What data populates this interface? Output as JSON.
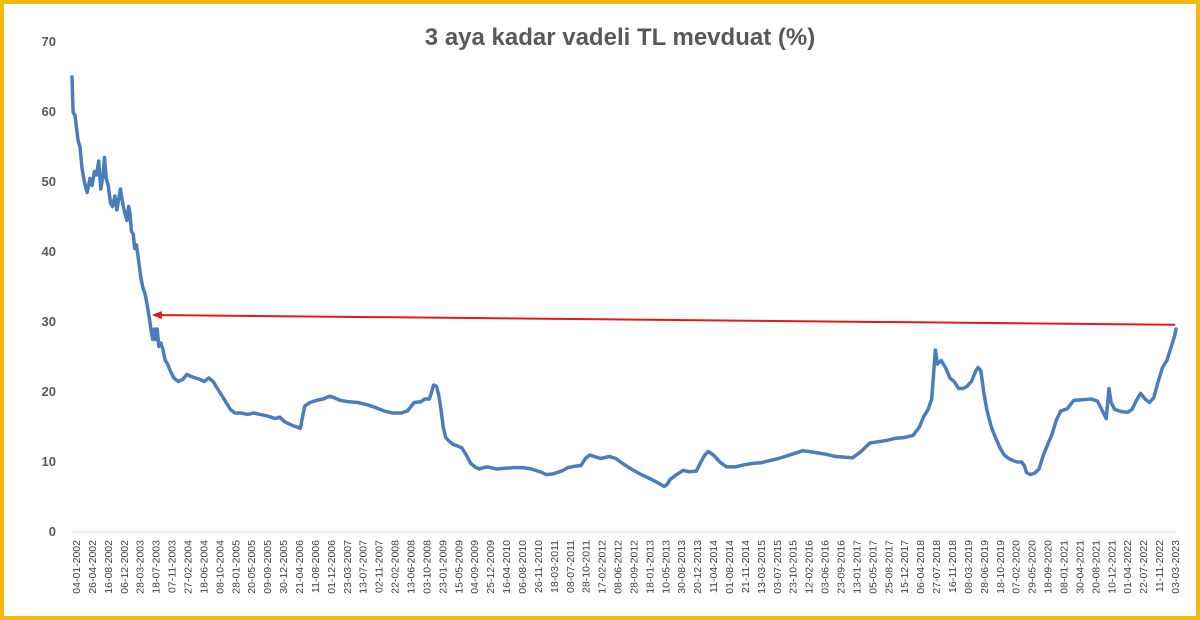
{
  "chart_data": {
    "type": "line",
    "title": "3 aya kadar vadeli TL mevduat (%)",
    "xlabel": "",
    "ylabel": "",
    "ylim": [
      0,
      70
    ],
    "yticks": [
      0,
      10,
      20,
      30,
      40,
      50,
      60,
      70
    ],
    "grid": false,
    "legend": "none",
    "x_tick_labels": [
      "04-01-2002",
      "26-04-2002",
      "16-08-2002",
      "06-12-2002",
      "28-03-2003",
      "18-07-2003",
      "07-11-2003",
      "27-02-2004",
      "18-06-2004",
      "08-10-2004",
      "28-01-2005",
      "20-05-2005",
      "09-09-2005",
      "30-12-2005",
      "21-04-2006",
      "11-08-2006",
      "01-12-2006",
      "23-03-2007",
      "13-07-2007",
      "02-11-2007",
      "22-02-2008",
      "13-06-2008",
      "03-10-2008",
      "23-01-2009",
      "15-05-2009",
      "04-09-2009",
      "25-12-2009",
      "16-04-2010",
      "06-08-2010",
      "26-11-2010",
      "18-03-2011",
      "08-07-2011",
      "28-10-2011",
      "17-02-2012",
      "08-06-2012",
      "28-09-2012",
      "18-01-2013",
      "10-05-2013",
      "30-08-2013",
      "20-12-2013",
      "11-04-2014",
      "01-08-2014",
      "21-11-2014",
      "13-03-2015",
      "03-07-2015",
      "23-10-2015",
      "12-02-2016",
      "03-06-2016",
      "23-09-2016",
      "13-01-2017",
      "05-05-2017",
      "25-08-2017",
      "15-12-2017",
      "06-04-2018",
      "27-07-2018",
      "16-11-2018",
      "08-03-2019",
      "28-06-2019",
      "18-10-2019",
      "07-02-2020",
      "29-05-2020",
      "18-09-2020",
      "08-01-2021",
      "30-04-2021",
      "20-08-2021",
      "10-12-2021",
      "01-04-2022",
      "22-07-2022",
      "11-11-2022",
      "03-03-2023"
    ],
    "series": [
      {
        "color": "#4a7ebb",
        "points": [
          [
            "2002-01-04",
            65
          ],
          [
            "2002-01-12",
            60
          ],
          [
            "2002-01-25",
            59.5
          ],
          [
            "2002-02-15",
            56
          ],
          [
            "2002-03-01",
            55
          ],
          [
            "2002-03-15",
            52
          ],
          [
            "2002-04-01",
            50
          ],
          [
            "2002-04-20",
            48.5
          ],
          [
            "2002-05-10",
            50.5
          ],
          [
            "2002-05-25",
            49.5
          ],
          [
            "2002-06-10",
            51.5
          ],
          [
            "2002-06-25",
            51
          ],
          [
            "2002-07-10",
            53
          ],
          [
            "2002-07-25",
            49
          ],
          [
            "2002-08-10",
            51
          ],
          [
            "2002-08-20",
            53.5
          ],
          [
            "2002-09-01",
            50.5
          ],
          [
            "2002-09-15",
            49.5
          ],
          [
            "2002-10-01",
            47
          ],
          [
            "2002-10-15",
            46.5
          ],
          [
            "2002-11-01",
            48
          ],
          [
            "2002-11-15",
            46
          ],
          [
            "2002-12-01",
            48
          ],
          [
            "2002-12-10",
            49
          ],
          [
            "2002-12-25",
            47
          ],
          [
            "2003-01-10",
            45.5
          ],
          [
            "2003-01-25",
            44.5
          ],
          [
            "2003-02-05",
            46.5
          ],
          [
            "2003-02-15",
            45.5
          ],
          [
            "2003-02-25",
            43
          ],
          [
            "2003-03-10",
            42.5
          ],
          [
            "2003-03-20",
            40.5
          ],
          [
            "2003-04-01",
            41
          ],
          [
            "2003-04-15",
            39
          ],
          [
            "2003-05-01",
            36.5
          ],
          [
            "2003-05-15",
            35
          ],
          [
            "2003-06-01",
            34
          ],
          [
            "2003-06-15",
            32.5
          ],
          [
            "2003-07-01",
            30.5
          ],
          [
            "2003-07-15",
            28.5
          ],
          [
            "2003-07-25",
            27.5
          ],
          [
            "2003-08-05",
            29
          ],
          [
            "2003-08-15",
            27.5
          ],
          [
            "2003-08-25",
            29
          ],
          [
            "2003-09-05",
            26.5
          ],
          [
            "2003-09-20",
            27
          ],
          [
            "2003-10-05",
            26
          ],
          [
            "2003-10-20",
            24.5
          ],
          [
            "2003-11-05",
            24
          ],
          [
            "2003-11-25",
            23
          ],
          [
            "2003-12-20",
            22
          ],
          [
            "2004-01-20",
            21.5
          ],
          [
            "2004-02-20",
            21.8
          ],
          [
            "2004-03-20",
            22.5
          ],
          [
            "2004-04-20",
            22.2
          ],
          [
            "2004-05-20",
            22
          ],
          [
            "2004-06-20",
            21.8
          ],
          [
            "2004-07-20",
            21.5
          ],
          [
            "2004-08-20",
            22
          ],
          [
            "2004-09-20",
            21.5
          ],
          [
            "2004-10-20",
            20.5
          ],
          [
            "2004-11-20",
            19.5
          ],
          [
            "2004-12-20",
            18.5
          ],
          [
            "2005-01-20",
            17.5
          ],
          [
            "2005-02-20",
            17
          ],
          [
            "2005-04-01",
            17
          ],
          [
            "2005-05-20",
            16.8
          ],
          [
            "2005-07-01",
            17
          ],
          [
            "2005-08-15",
            16.8
          ],
          [
            "2005-10-01",
            16.6
          ],
          [
            "2005-11-01",
            16.4
          ],
          [
            "2005-12-01",
            16.2
          ],
          [
            "2006-01-01",
            16.4
          ],
          [
            "2006-02-01",
            15.8
          ],
          [
            "2006-03-01",
            15.5
          ],
          [
            "2006-04-01",
            15.2
          ],
          [
            "2006-05-01",
            15
          ],
          [
            "2006-05-25",
            14.8
          ],
          [
            "2006-06-10",
            16.5
          ],
          [
            "2006-06-25",
            18
          ],
          [
            "2006-08-01",
            18.5
          ],
          [
            "2006-09-15",
            18.8
          ],
          [
            "2006-11-01",
            19
          ],
          [
            "2006-12-15",
            19.4
          ],
          [
            "2007-01-15",
            19.2
          ],
          [
            "2007-03-01",
            18.8
          ],
          [
            "2007-05-01",
            18.6
          ],
          [
            "2007-07-01",
            18.5
          ],
          [
            "2007-09-01",
            18.2
          ],
          [
            "2007-11-01",
            17.8
          ],
          [
            "2008-01-01",
            17.3
          ],
          [
            "2008-03-01",
            17
          ],
          [
            "2008-05-01",
            17
          ],
          [
            "2008-06-15",
            17.3
          ],
          [
            "2008-08-01",
            18.5
          ],
          [
            "2008-09-15",
            18.6
          ],
          [
            "2008-10-15",
            19
          ],
          [
            "2008-11-15",
            19
          ],
          [
            "2008-12-01",
            20
          ],
          [
            "2008-12-15",
            21
          ],
          [
            "2009-01-05",
            20.8
          ],
          [
            "2009-01-20",
            19.5
          ],
          [
            "2009-02-05",
            17.5
          ],
          [
            "2009-02-20",
            15
          ],
          [
            "2009-03-10",
            13.5
          ],
          [
            "2009-04-01",
            13
          ],
          [
            "2009-05-01",
            12.5
          ],
          [
            "2009-06-01",
            12.3
          ],
          [
            "2009-07-01",
            12
          ],
          [
            "2009-08-01",
            11
          ],
          [
            "2009-09-01",
            9.8
          ],
          [
            "2009-10-01",
            9.3
          ],
          [
            "2009-11-01",
            9
          ],
          [
            "2009-12-01",
            9.2
          ],
          [
            "2010-01-01",
            9.3
          ],
          [
            "2010-03-01",
            9
          ],
          [
            "2010-05-01",
            9.1
          ],
          [
            "2010-07-01",
            9.2
          ],
          [
            "2010-09-01",
            9.2
          ],
          [
            "2010-11-01",
            9
          ],
          [
            "2011-01-01",
            8.6
          ],
          [
            "2011-02-15",
            8.2
          ],
          [
            "2011-04-01",
            8.3
          ],
          [
            "2011-06-01",
            8.7
          ],
          [
            "2011-07-15",
            9.2
          ],
          [
            "2011-09-01",
            9.4
          ],
          [
            "2011-10-15",
            9.5
          ],
          [
            "2011-11-15",
            10.5
          ],
          [
            "2011-12-15",
            11
          ],
          [
            "2012-01-15",
            10.8
          ],
          [
            "2012-03-01",
            10.5
          ],
          [
            "2012-05-01",
            10.8
          ],
          [
            "2012-06-15",
            10.5
          ],
          [
            "2012-08-01",
            9.8
          ],
          [
            "2012-10-01",
            9
          ],
          [
            "2012-12-01",
            8.3
          ],
          [
            "2013-02-01",
            7.7
          ],
          [
            "2013-04-01",
            7.1
          ],
          [
            "2013-05-20",
            6.5
          ],
          [
            "2013-06-10",
            6.8
          ],
          [
            "2013-07-01",
            7.5
          ],
          [
            "2013-08-15",
            8.2
          ],
          [
            "2013-10-01",
            8.8
          ],
          [
            "2013-11-15",
            8.6
          ],
          [
            "2014-01-01",
            8.7
          ],
          [
            "2014-02-01",
            10
          ],
          [
            "2014-03-01",
            11
          ],
          [
            "2014-03-25",
            11.5
          ],
          [
            "2014-05-01",
            11
          ],
          [
            "2014-06-15",
            10
          ],
          [
            "2014-08-01",
            9.3
          ],
          [
            "2014-10-01",
            9.3
          ],
          [
            "2014-12-01",
            9.6
          ],
          [
            "2015-02-01",
            9.8
          ],
          [
            "2015-04-01",
            9.9
          ],
          [
            "2015-06-01",
            10.2
          ],
          [
            "2015-08-01",
            10.5
          ],
          [
            "2015-10-01",
            10.9
          ],
          [
            "2015-12-01",
            11.3
          ],
          [
            "2016-01-15",
            11.6
          ],
          [
            "2016-03-01",
            11.5
          ],
          [
            "2016-05-01",
            11.3
          ],
          [
            "2016-07-01",
            11.1
          ],
          [
            "2016-09-01",
            10.8
          ],
          [
            "2016-11-01",
            10.7
          ],
          [
            "2017-01-01",
            10.6
          ],
          [
            "2017-03-01",
            11.5
          ],
          [
            "2017-05-01",
            12.7
          ],
          [
            "2017-07-01",
            12.9
          ],
          [
            "2017-09-01",
            13.1
          ],
          [
            "2017-11-01",
            13.4
          ],
          [
            "2018-01-01",
            13.5
          ],
          [
            "2018-03-01",
            13.8
          ],
          [
            "2018-04-15",
            15
          ],
          [
            "2018-05-15",
            16.5
          ],
          [
            "2018-06-15",
            17.5
          ],
          [
            "2018-07-10",
            19
          ],
          [
            "2018-07-25",
            23
          ],
          [
            "2018-08-05",
            26
          ],
          [
            "2018-08-20",
            24
          ],
          [
            "2018-09-15",
            24.5
          ],
          [
            "2018-10-15",
            23.5
          ],
          [
            "2018-11-15",
            22
          ],
          [
            "2018-12-15",
            21.5
          ],
          [
            "2019-01-15",
            20.5
          ],
          [
            "2019-02-15",
            20.5
          ],
          [
            "2019-03-15",
            20.8
          ],
          [
            "2019-04-15",
            21.5
          ],
          [
            "2019-05-15",
            23
          ],
          [
            "2019-06-01",
            23.5
          ],
          [
            "2019-06-20",
            23
          ],
          [
            "2019-07-10",
            20
          ],
          [
            "2019-08-01",
            17.5
          ],
          [
            "2019-09-01",
            15
          ],
          [
            "2019-10-01",
            13.5
          ],
          [
            "2019-11-01",
            12
          ],
          [
            "2019-12-01",
            11
          ],
          [
            "2020-01-01",
            10.5
          ],
          [
            "2020-02-01",
            10.2
          ],
          [
            "2020-03-01",
            10
          ],
          [
            "2020-04-01",
            10
          ],
          [
            "2020-04-20",
            9.5
          ],
          [
            "2020-05-05",
            8.5
          ],
          [
            "2020-06-01",
            8.2
          ],
          [
            "2020-07-01",
            8.4
          ],
          [
            "2020-08-01",
            9
          ],
          [
            "2020-09-01",
            11
          ],
          [
            "2020-10-01",
            12.5
          ],
          [
            "2020-11-01",
            14
          ],
          [
            "2020-12-01",
            16
          ],
          [
            "2021-01-01",
            17.3
          ],
          [
            "2021-02-15",
            17.6
          ],
          [
            "2021-04-01",
            18.8
          ],
          [
            "2021-06-01",
            18.9
          ],
          [
            "2021-08-01",
            19
          ],
          [
            "2021-09-15",
            18.7
          ],
          [
            "2021-10-15",
            17.5
          ],
          [
            "2021-11-15",
            16.2
          ],
          [
            "2021-12-05",
            20.5
          ],
          [
            "2021-12-20",
            18.5
          ],
          [
            "2022-01-15",
            17.5
          ],
          [
            "2022-03-01",
            17.2
          ],
          [
            "2022-04-15",
            17.1
          ],
          [
            "2022-05-15",
            17.5
          ],
          [
            "2022-06-15",
            18.8
          ],
          [
            "2022-07-15",
            19.8
          ],
          [
            "2022-08-15",
            19
          ],
          [
            "2022-09-15",
            18.5
          ],
          [
            "2022-10-15",
            19.2
          ],
          [
            "2022-11-15",
            21.5
          ],
          [
            "2022-12-15",
            23.5
          ],
          [
            "2023-01-15",
            24.5
          ],
          [
            "2023-02-15",
            26.5
          ],
          [
            "2023-03-10",
            28
          ],
          [
            "2023-03-20",
            29
          ]
        ]
      }
    ],
    "annotation": {
      "type": "arrow",
      "color": "#e31a1c",
      "from": [
        "2023-03-15",
        29.6
      ],
      "to": [
        "2003-08-01",
        31
      ]
    }
  }
}
